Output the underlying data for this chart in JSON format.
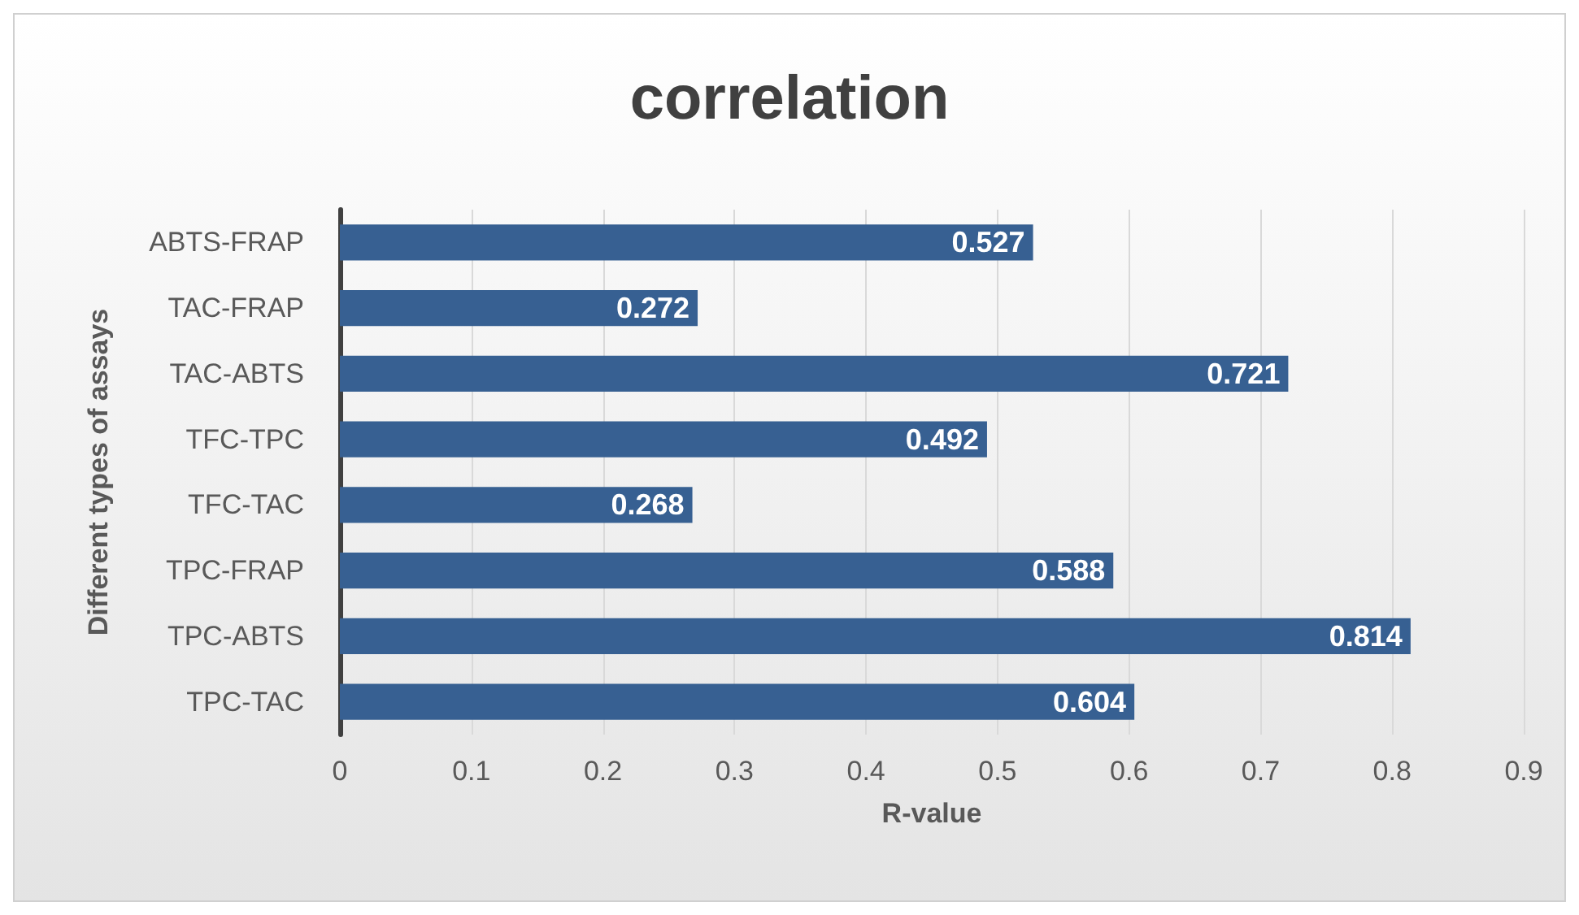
{
  "chart_data": {
    "type": "bar",
    "orientation": "horizontal",
    "title": "correlation",
    "xlabel": "R-value",
    "ylabel": "Different types of assays",
    "categories": [
      "ABTS-FRAP",
      "TAC-FRAP",
      "TAC-ABTS",
      "TFC-TPC",
      "TFC-TAC",
      "TPC-FRAP",
      "TPC-ABTS",
      "TPC-TAC"
    ],
    "values": [
      0.527,
      0.272,
      0.721,
      0.492,
      0.268,
      0.588,
      0.814,
      0.604
    ],
    "color": "#376092",
    "data_labels": true,
    "xlim": [
      0,
      0.9
    ],
    "xticks": [
      0,
      0.1,
      0.2,
      0.3,
      0.4,
      0.5,
      0.6,
      0.7,
      0.8,
      0.9
    ],
    "grid": "x"
  }
}
